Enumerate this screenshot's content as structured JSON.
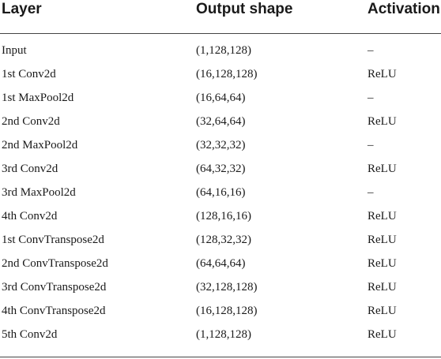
{
  "table": {
    "headers": [
      "Layer",
      "Output shape",
      "Activation"
    ],
    "rows": [
      [
        "Input",
        "(1,128,128)",
        "–"
      ],
      [
        "1st Conv2d",
        "(16,128,128)",
        "ReLU"
      ],
      [
        "1st MaxPool2d",
        "(16,64,64)",
        "–"
      ],
      [
        "2nd Conv2d",
        "(32,64,64)",
        "ReLU"
      ],
      [
        "2nd MaxPool2d",
        "(32,32,32)",
        "–"
      ],
      [
        "3rd Conv2d",
        "(64,32,32)",
        "ReLU"
      ],
      [
        "3rd MaxPool2d",
        "(64,16,16)",
        "–"
      ],
      [
        "4th Conv2d",
        "(128,16,16)",
        "ReLU"
      ],
      [
        "1st ConvTranspose2d",
        "(128,32,32)",
        "ReLU"
      ],
      [
        "2nd ConvTranspose2d",
        "(64,64,64)",
        "ReLU"
      ],
      [
        "3rd ConvTranspose2d",
        "(32,128,128)",
        "ReLU"
      ],
      [
        "4th ConvTranspose2d",
        "(16,128,128)",
        "ReLU"
      ],
      [
        "5th Conv2d",
        "(1,128,128)",
        "ReLU"
      ]
    ]
  }
}
